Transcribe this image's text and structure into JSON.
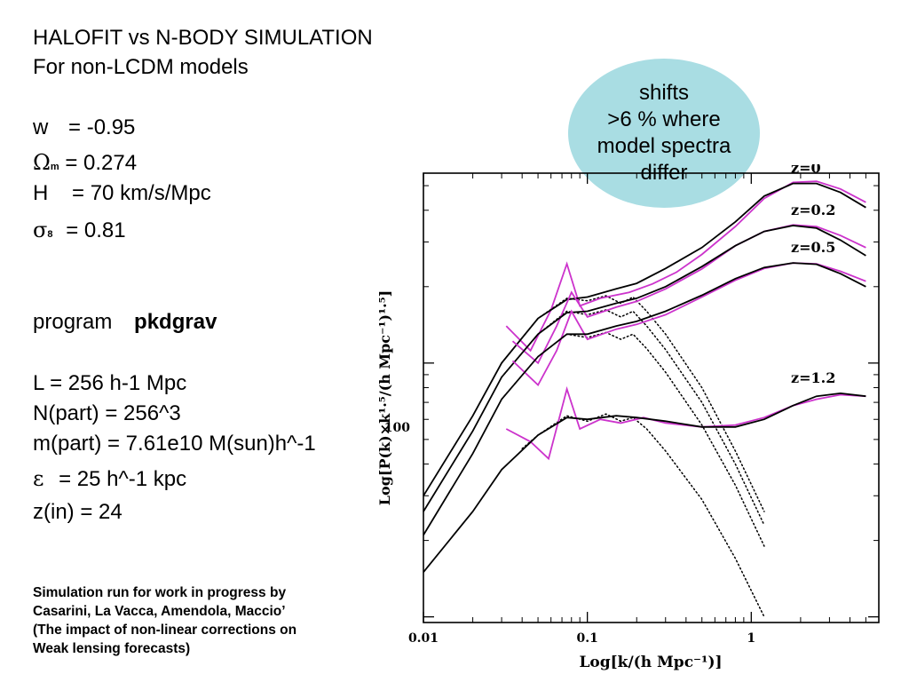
{
  "slide": {
    "title_line1": "HALOFIT  vs  N-BODY SIMULATION",
    "title_line2": "For non-LCDM  models",
    "params": {
      "w": {
        "label": "w",
        "eq": "= -0.95"
      },
      "omega_m": {
        "symbol": "Ω",
        "sub": "m",
        "eq": "=  0.274"
      },
      "H": {
        "label": "H",
        "eq": "=  70 km/s/Mpc"
      },
      "sigma8": {
        "symbol": "σ",
        "sub": "8",
        "eq": "=  0.81"
      }
    },
    "program_label": "program",
    "program_name": "pkdgrav",
    "sim": {
      "L": "L = 256 h-1 Mpc",
      "npart": "N(part) = 256^3",
      "mpart": "m(part) = 7.61e10 M(sun)h^-1",
      "eps_symbol": "ε",
      "eps": " = 25 h^-1 kpc",
      "zin": "z(in) = 24"
    },
    "credit": [
      "Simulation run  for work in progress by",
      "Casarini, La Vacca, Amendola, Maccio’",
      "(The impact of non-linear corrections on",
      "Weak lensing forecasts)"
    ],
    "bubble": [
      "shifts",
      ">6 % where",
      "model spectra",
      "differ"
    ]
  },
  "chart_data": {
    "type": "line",
    "xscale": "log",
    "yscale": "log",
    "xlim": [
      0.01,
      6
    ],
    "xticks": [
      0.01,
      0.1,
      1
    ],
    "xticklabels": [
      "0.01",
      "0.1",
      "1"
    ],
    "ytick_label": "100",
    "xlabel": "Log[k/(h  Mpc⁻¹)]",
    "ylabel": "Log[P(k)×k¹·⁵/(h  Mpc⁻¹)¹·⁵]",
    "series_colors": {
      "halofit": "#000000",
      "linear": "#000000",
      "nbody": "#cc33cc"
    },
    "series": [
      {
        "name": "z=0",
        "halofit": [
          [
            0.01,
            30
          ],
          [
            0.02,
            62
          ],
          [
            0.03,
            100
          ],
          [
            0.05,
            150
          ],
          [
            0.075,
            178
          ],
          [
            0.1,
            182
          ],
          [
            0.15,
            196
          ],
          [
            0.2,
            206
          ],
          [
            0.3,
            236
          ],
          [
            0.5,
            285
          ],
          [
            0.8,
            360
          ],
          [
            1.2,
            455
          ],
          [
            1.8,
            510
          ],
          [
            2.5,
            510
          ],
          [
            3.5,
            470
          ],
          [
            5,
            410
          ]
        ],
        "linear": [
          [
            0.03,
            100
          ],
          [
            0.05,
            150
          ],
          [
            0.075,
            180
          ],
          [
            0.1,
            176
          ],
          [
            0.13,
            184
          ],
          [
            0.16,
            172
          ],
          [
            0.19,
            182
          ],
          [
            0.23,
            160
          ],
          [
            0.3,
            130
          ],
          [
            0.5,
            80
          ],
          [
            0.8,
            45
          ],
          [
            1.2,
            26
          ]
        ],
        "nbody": [
          [
            0.032,
            140
          ],
          [
            0.045,
            112
          ],
          [
            0.06,
            162
          ],
          [
            0.075,
            246
          ],
          [
            0.09,
            168
          ],
          [
            0.12,
            180
          ],
          [
            0.18,
            190
          ],
          [
            0.25,
            205
          ],
          [
            0.35,
            228
          ],
          [
            0.5,
            268
          ],
          [
            0.8,
            345
          ],
          [
            1.2,
            445
          ],
          [
            1.8,
            515
          ],
          [
            2.5,
            520
          ],
          [
            3.5,
            485
          ],
          [
            5,
            430
          ]
        ]
      },
      {
        "name": "z=0.2",
        "halofit": [
          [
            0.01,
            26
          ],
          [
            0.02,
            54
          ],
          [
            0.03,
            88
          ],
          [
            0.05,
            130
          ],
          [
            0.075,
            158
          ],
          [
            0.1,
            160
          ],
          [
            0.15,
            172
          ],
          [
            0.2,
            180
          ],
          [
            0.3,
            200
          ],
          [
            0.5,
            240
          ],
          [
            0.8,
            290
          ],
          [
            1.2,
            330
          ],
          [
            1.8,
            348
          ],
          [
            2.5,
            340
          ],
          [
            3.5,
            305
          ],
          [
            5,
            265
          ]
        ],
        "linear": [
          [
            0.03,
            88
          ],
          [
            0.05,
            130
          ],
          [
            0.075,
            160
          ],
          [
            0.1,
            155
          ],
          [
            0.13,
            162
          ],
          [
            0.16,
            152
          ],
          [
            0.19,
            160
          ],
          [
            0.23,
            140
          ],
          [
            0.3,
            113
          ],
          [
            0.5,
            70
          ],
          [
            0.8,
            40
          ],
          [
            1.2,
            23
          ]
        ],
        "nbody": [
          [
            0.035,
            122
          ],
          [
            0.05,
            100
          ],
          [
            0.065,
            140
          ],
          [
            0.08,
            190
          ],
          [
            0.1,
            152
          ],
          [
            0.15,
            166
          ],
          [
            0.2,
            175
          ],
          [
            0.3,
            196
          ],
          [
            0.5,
            235
          ],
          [
            0.8,
            290
          ],
          [
            1.2,
            330
          ],
          [
            1.8,
            350
          ],
          [
            2.5,
            345
          ],
          [
            3.5,
            318
          ],
          [
            5,
            285
          ]
        ]
      },
      {
        "name": "z=0.5",
        "halofit": [
          [
            0.01,
            21
          ],
          [
            0.02,
            44
          ],
          [
            0.03,
            72
          ],
          [
            0.05,
            106
          ],
          [
            0.075,
            130
          ],
          [
            0.1,
            130
          ],
          [
            0.15,
            140
          ],
          [
            0.2,
            146
          ],
          [
            0.3,
            160
          ],
          [
            0.5,
            185
          ],
          [
            0.8,
            215
          ],
          [
            1.2,
            238
          ],
          [
            1.8,
            248
          ],
          [
            2.5,
            245
          ],
          [
            3.5,
            225
          ],
          [
            5,
            200
          ]
        ],
        "linear": [
          [
            0.03,
            72
          ],
          [
            0.05,
            106
          ],
          [
            0.075,
            130
          ],
          [
            0.1,
            126
          ],
          [
            0.13,
            132
          ],
          [
            0.16,
            124
          ],
          [
            0.19,
            130
          ],
          [
            0.23,
            114
          ],
          [
            0.3,
            92
          ],
          [
            0.5,
            57
          ],
          [
            0.8,
            33
          ],
          [
            1.2,
            19
          ]
        ],
        "nbody": [
          [
            0.035,
            102
          ],
          [
            0.05,
            82
          ],
          [
            0.065,
            112
          ],
          [
            0.08,
            160
          ],
          [
            0.1,
            124
          ],
          [
            0.15,
            136
          ],
          [
            0.2,
            142
          ],
          [
            0.3,
            155
          ],
          [
            0.5,
            182
          ],
          [
            0.8,
            212
          ],
          [
            1.2,
            236
          ],
          [
            1.8,
            248
          ],
          [
            2.5,
            246
          ],
          [
            3.5,
            230
          ],
          [
            5,
            210
          ]
        ]
      },
      {
        "name": "z=1.2",
        "halofit": [
          [
            0.01,
            15
          ],
          [
            0.02,
            26
          ],
          [
            0.03,
            38
          ],
          [
            0.05,
            52
          ],
          [
            0.075,
            61
          ],
          [
            0.1,
            60
          ],
          [
            0.15,
            62
          ],
          [
            0.2,
            61
          ],
          [
            0.3,
            59
          ],
          [
            0.5,
            56
          ],
          [
            0.8,
            56
          ],
          [
            1.2,
            60
          ],
          [
            1.8,
            68
          ],
          [
            2.5,
            74
          ],
          [
            3.5,
            76
          ],
          [
            5,
            74
          ]
        ],
        "linear": [
          [
            0.04,
            46
          ],
          [
            0.05,
            52
          ],
          [
            0.075,
            62
          ],
          [
            0.1,
            59
          ],
          [
            0.13,
            63
          ],
          [
            0.16,
            59
          ],
          [
            0.19,
            61
          ],
          [
            0.23,
            55
          ],
          [
            0.3,
            45
          ],
          [
            0.5,
            29
          ],
          [
            0.8,
            17
          ],
          [
            1.2,
            10
          ]
        ],
        "nbody": [
          [
            0.032,
            55
          ],
          [
            0.045,
            49
          ],
          [
            0.058,
            42
          ],
          [
            0.075,
            79
          ],
          [
            0.09,
            55
          ],
          [
            0.12,
            60
          ],
          [
            0.16,
            58
          ],
          [
            0.22,
            61
          ],
          [
            0.3,
            58
          ],
          [
            0.5,
            56
          ],
          [
            0.8,
            57
          ],
          [
            1.2,
            61
          ],
          [
            1.8,
            68
          ],
          [
            2.5,
            72
          ],
          [
            3.5,
            75
          ],
          [
            5,
            74
          ]
        ]
      }
    ]
  }
}
